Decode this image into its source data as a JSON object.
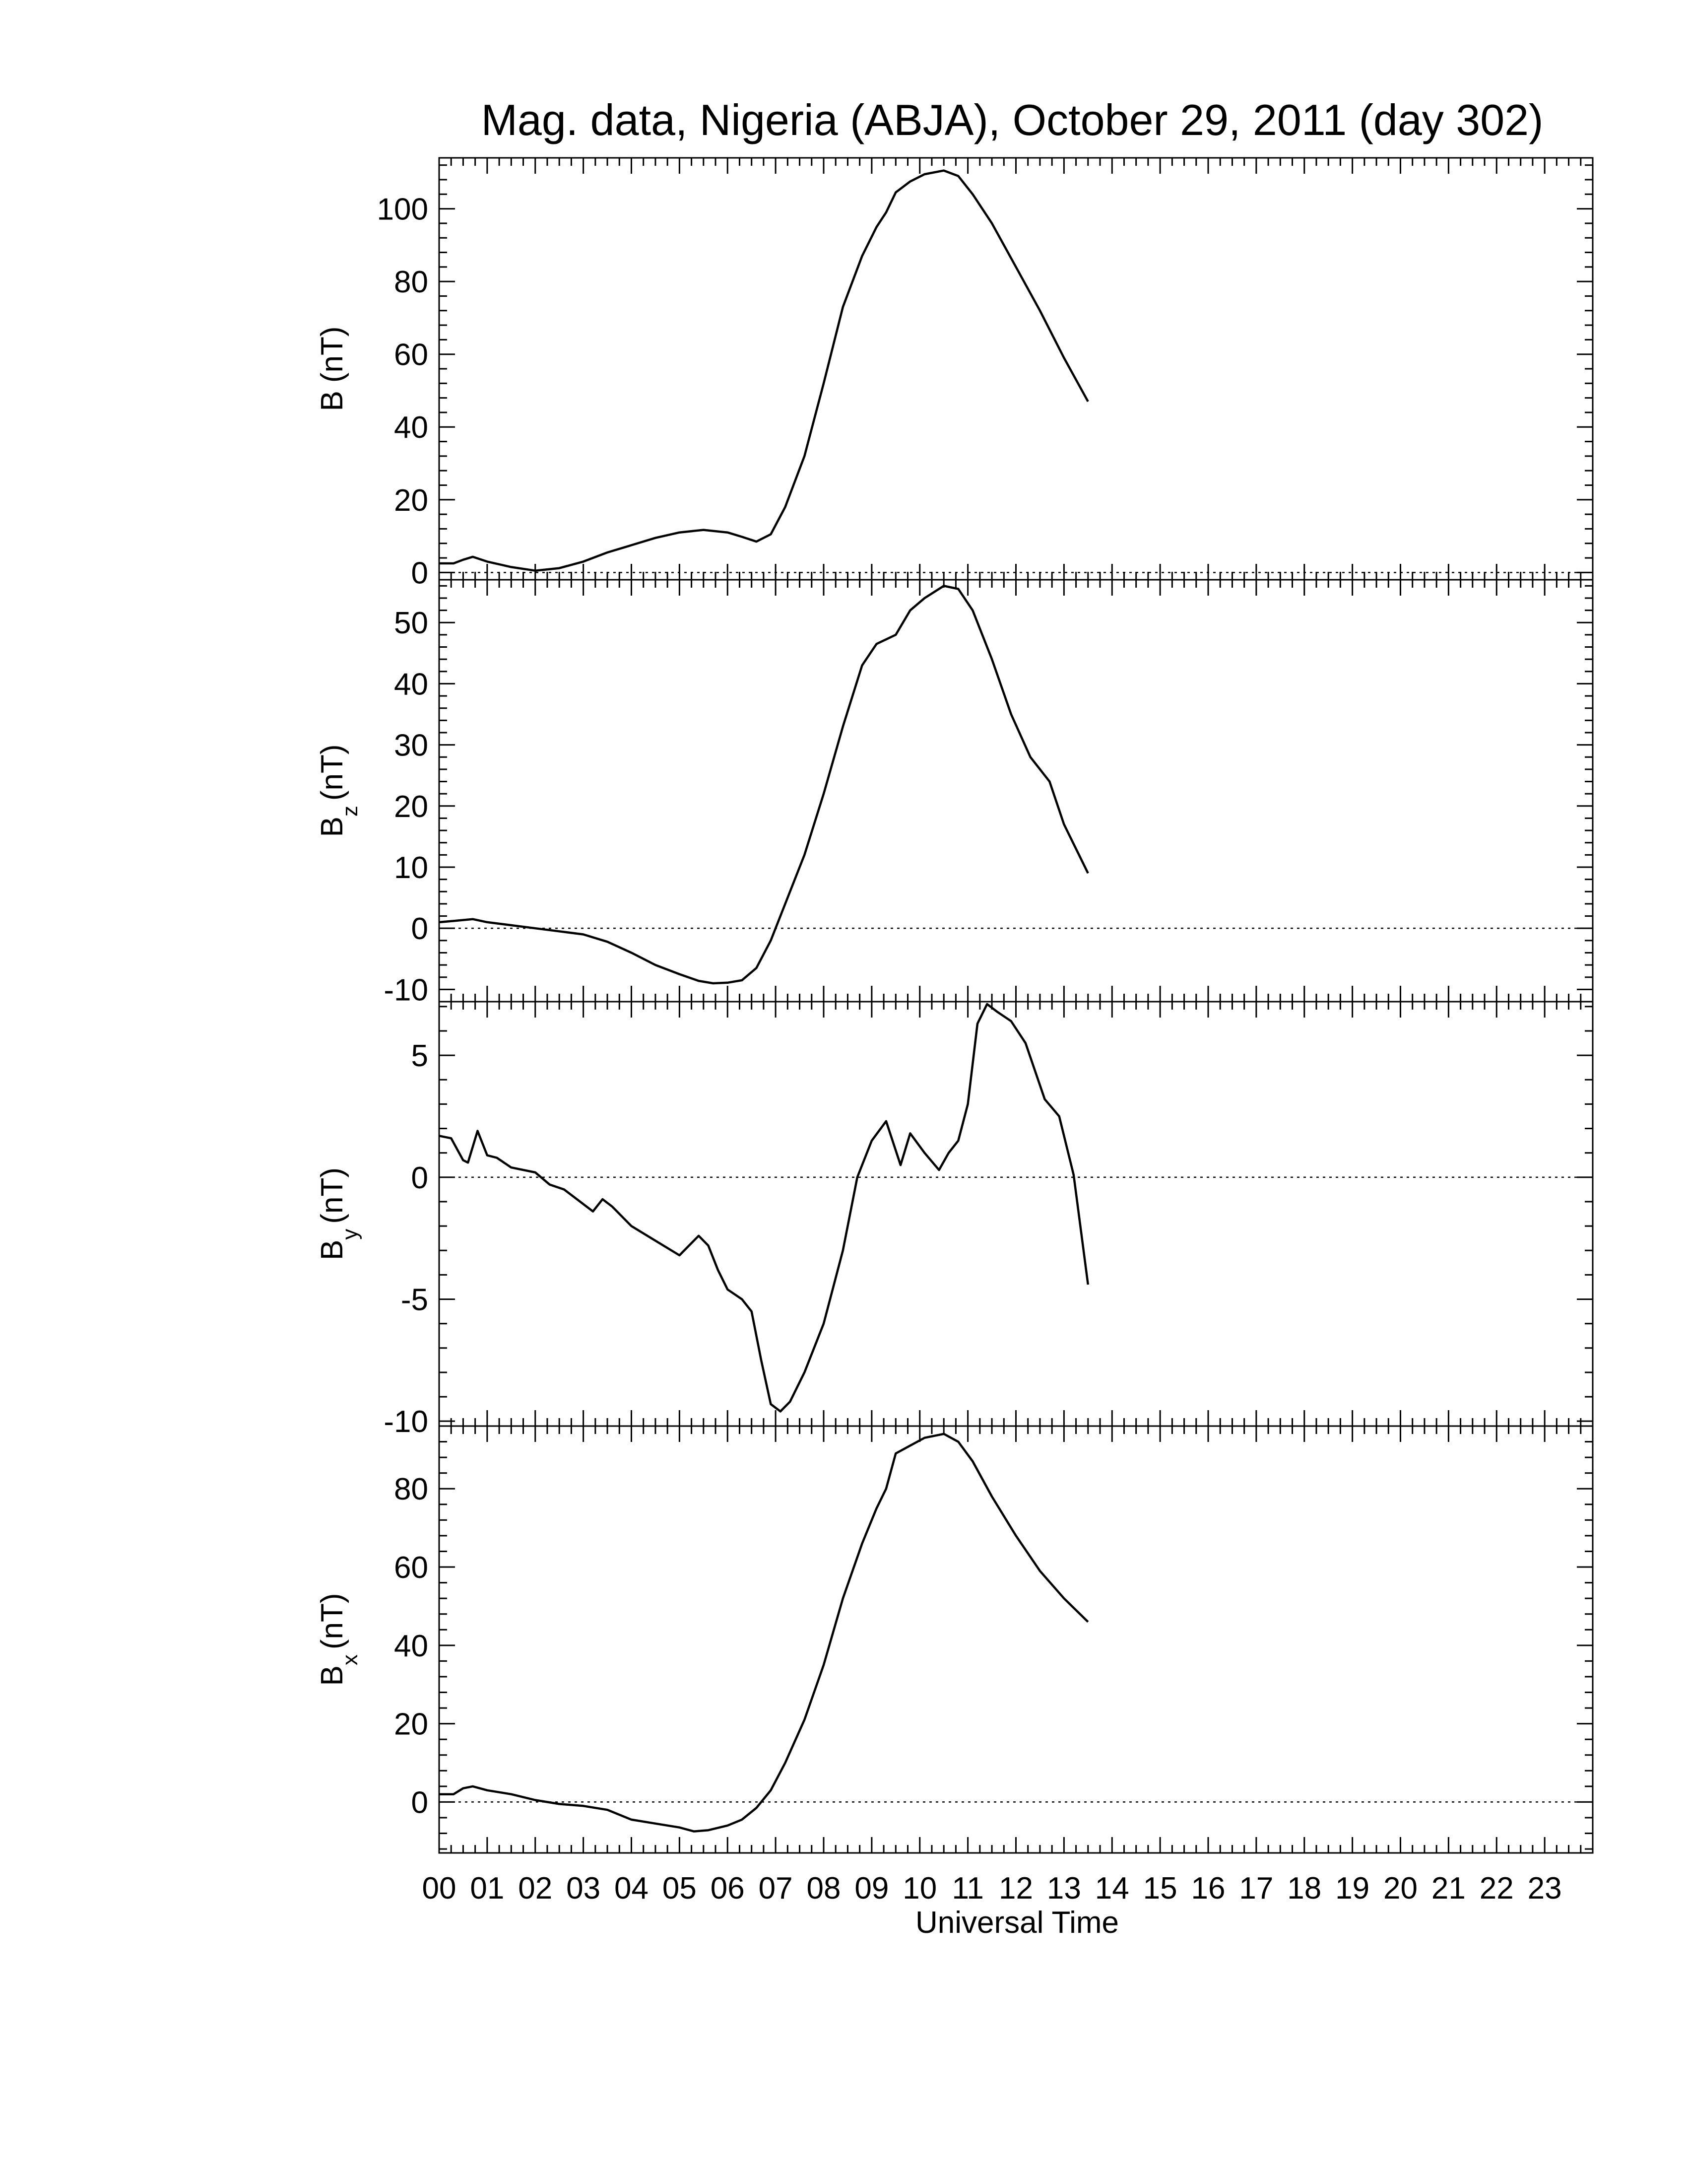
{
  "chart_data": {
    "type": "line",
    "title": "Mag. data, Nigeria (ABJA), October 29, 2011 (day 302)",
    "xlabel": "Universal Time",
    "x_unit": "hours UT",
    "xlim": [
      0,
      24
    ],
    "x_tick_labels": [
      "00",
      "01",
      "02",
      "03",
      "04",
      "05",
      "06",
      "07",
      "08",
      "09",
      "10",
      "11",
      "12",
      "13",
      "14",
      "15",
      "16",
      "17",
      "18",
      "19",
      "20",
      "21",
      "22",
      "23"
    ],
    "grid": false,
    "zero_reference_line": "dotted",
    "panels": [
      {
        "ylabel_main": "B",
        "ylabel_sub": "",
        "ylabel_unit": "(nT)",
        "ylim": [
          -2,
          114
        ],
        "yticks": [
          0,
          20,
          40,
          60,
          80,
          100
        ],
        "ytick_labels": [
          "0",
          "20",
          "40",
          "60",
          "80",
          "100"
        ],
        "x": [
          0,
          0.3,
          0.5,
          0.7,
          1.0,
          1.5,
          2.0,
          2.5,
          3.0,
          3.5,
          4.0,
          4.5,
          5.0,
          5.5,
          6.0,
          6.3,
          6.6,
          6.9,
          7.2,
          7.6,
          8.0,
          8.4,
          8.8,
          9.1,
          9.3,
          9.5,
          9.8,
          10.1,
          10.5,
          10.8,
          11.1,
          11.5,
          12.0,
          12.5,
          13.0,
          13.5
        ],
        "y": [
          2.5,
          2.5,
          3.5,
          4.3,
          3,
          1.5,
          0.5,
          1.2,
          3.0,
          5.5,
          7.5,
          9.5,
          11.0,
          11.7,
          11.0,
          9.8,
          8.5,
          10.5,
          18.0,
          32.0,
          52.0,
          73.0,
          87.0,
          95.0,
          99.0,
          104.5,
          107.5,
          109.5,
          110.5,
          109.0,
          104.0,
          96.0,
          84.0,
          72.0,
          59.0,
          47.0
        ]
      },
      {
        "ylabel_main": "B",
        "ylabel_sub": "z",
        "ylabel_unit": "(nT)",
        "ylim": [
          -12,
          57
        ],
        "yticks": [
          -10,
          0,
          10,
          20,
          30,
          40,
          50
        ],
        "ytick_labels": [
          "-10",
          "0",
          "10",
          "20",
          "30",
          "40",
          "50"
        ],
        "x": [
          0,
          0.3,
          0.7,
          1.0,
          1.5,
          2.0,
          2.5,
          3.0,
          3.5,
          4.0,
          4.5,
          5.0,
          5.4,
          5.7,
          6.0,
          6.3,
          6.6,
          6.9,
          7.2,
          7.6,
          8.0,
          8.4,
          8.8,
          9.1,
          9.5,
          9.8,
          10.1,
          10.5,
          10.8,
          11.1,
          11.5,
          11.9,
          12.3,
          12.7,
          13.0,
          13.5
        ],
        "y": [
          1,
          1.2,
          1.5,
          1,
          0.5,
          0,
          -0.5,
          -1,
          -2.2,
          -4,
          -6,
          -7.5,
          -8.6,
          -9,
          -8.9,
          -8.5,
          -6.5,
          -2,
          4,
          12,
          22,
          33,
          43,
          46.5,
          48,
          52,
          54,
          56,
          55.5,
          52,
          44,
          35,
          28,
          24,
          17,
          9
        ]
      },
      {
        "ylabel_main": "B",
        "ylabel_sub": "y",
        "ylabel_unit": "(nT)",
        "ylim": [
          -10.2,
          7.2
        ],
        "yticks": [
          -10,
          -5,
          0,
          5
        ],
        "ytick_labels": [
          "-10",
          "-5",
          "0",
          "5"
        ],
        "x": [
          0,
          0.25,
          0.5,
          0.6,
          0.8,
          1.0,
          1.2,
          1.5,
          2.0,
          2.3,
          2.6,
          3.0,
          3.2,
          3.4,
          3.6,
          4.0,
          4.5,
          5.0,
          5.4,
          5.6,
          5.8,
          6.0,
          6.3,
          6.5,
          6.7,
          6.9,
          7.1,
          7.3,
          7.6,
          8.0,
          8.4,
          8.7,
          9.0,
          9.3,
          9.6,
          9.8,
          10.1,
          10.4,
          10.6,
          10.8,
          11.0,
          11.2,
          11.4,
          11.6,
          11.9,
          12.2,
          12.6,
          12.9,
          13.2,
          13.5
        ],
        "y": [
          1.7,
          1.6,
          0.7,
          0.6,
          1.9,
          0.9,
          0.8,
          0.4,
          0.2,
          -0.3,
          -0.5,
          -1.1,
          -1.4,
          -0.9,
          -1.2,
          -2.0,
          -2.6,
          -3.2,
          -2.4,
          -2.8,
          -3.8,
          -4.6,
          -5.0,
          -5.5,
          -7.5,
          -9.3,
          -9.6,
          -9.2,
          -8.0,
          -6.0,
          -3.0,
          0.0,
          1.5,
          2.3,
          0.5,
          1.8,
          1.0,
          0.3,
          1.0,
          1.5,
          3.0,
          6.3,
          7.1,
          6.8,
          6.4,
          5.5,
          3.2,
          2.5,
          0.1,
          -4.4
        ]
      },
      {
        "ylabel_main": "B",
        "ylabel_sub": "x",
        "ylabel_unit": "(nT)",
        "ylim": [
          -13,
          96
        ],
        "yticks": [
          0,
          20,
          40,
          60,
          80
        ],
        "ytick_labels": [
          "0",
          "20",
          "40",
          "60",
          "80"
        ],
        "x": [
          0,
          0.3,
          0.5,
          0.7,
          1.0,
          1.5,
          2.0,
          2.5,
          3.0,
          3.5,
          4.0,
          4.5,
          5.0,
          5.3,
          5.6,
          6.0,
          6.3,
          6.6,
          6.9,
          7.2,
          7.6,
          8.0,
          8.4,
          8.8,
          9.1,
          9.3,
          9.5,
          9.8,
          10.1,
          10.5,
          10.8,
          11.1,
          11.5,
          12.0,
          12.5,
          13.0,
          13.5
        ],
        "y": [
          2,
          2,
          3.5,
          4,
          3,
          2,
          0.5,
          -0.5,
          -1,
          -2,
          -4.5,
          -5.5,
          -6.5,
          -7.5,
          -7.2,
          -6,
          -4.5,
          -1.5,
          3,
          10,
          21,
          35,
          52,
          66,
          75,
          80,
          89,
          91,
          93,
          94,
          92,
          87,
          78,
          68,
          59,
          52,
          46
        ]
      }
    ]
  }
}
